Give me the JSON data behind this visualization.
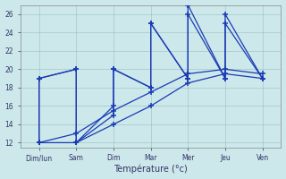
{
  "xlabel": "Température (°c)",
  "background_color": "#cce8ea",
  "line_color": "#1a3ab5",
  "grid_color": "#9bbfbf",
  "x_labels": [
    "Dim/lun",
    "Sam",
    "Dim",
    "Mar",
    "Mer",
    "Jeu",
    "Ven"
  ],
  "ylim": [
    11.5,
    27
  ],
  "yticks": [
    12,
    14,
    16,
    18,
    20,
    22,
    24,
    26
  ],
  "line1_x": [
    0,
    0,
    1,
    1,
    2,
    2,
    3,
    3,
    4,
    4,
    5,
    5,
    6
  ],
  "line1_y": [
    12,
    19,
    20,
    12,
    16,
    20,
    18,
    25,
    19,
    27,
    19,
    26,
    19
  ],
  "line2_x": [
    0,
    0,
    1,
    1,
    2,
    2,
    3,
    3,
    4,
    4,
    5,
    5,
    6
  ],
  "line2_y": [
    12,
    19,
    20,
    12,
    15,
    20,
    18,
    25,
    19,
    26,
    19,
    25,
    19
  ],
  "line3_x": [
    0,
    1,
    2,
    3,
    4,
    5,
    6
  ],
  "line3_y": [
    12,
    12,
    14,
    16,
    18.5,
    19.5,
    19
  ],
  "line4_x": [
    0,
    1,
    2,
    3,
    4,
    5,
    6
  ],
  "line4_y": [
    12,
    13,
    15.5,
    17.5,
    19.5,
    20,
    19.5
  ],
  "markers_x1": [
    0,
    0,
    1,
    1,
    2,
    2,
    3,
    3,
    4,
    4,
    5,
    5,
    6
  ],
  "markers_y1": [
    12,
    19,
    20,
    12,
    16,
    20,
    18,
    25,
    19,
    27,
    19,
    26,
    19
  ],
  "markers_x2": [
    0,
    0,
    1,
    1,
    2,
    2,
    3,
    3,
    4,
    4,
    5,
    5,
    6
  ],
  "markers_y2": [
    12,
    19,
    20,
    12,
    15,
    20,
    18,
    25,
    19,
    26,
    19,
    25,
    19
  ]
}
